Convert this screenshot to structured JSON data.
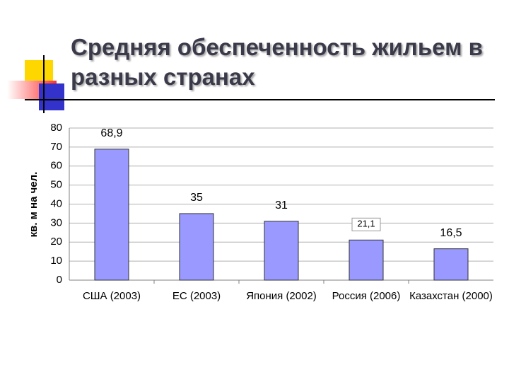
{
  "chart_data": {
    "type": "bar",
    "title": "Средняя обеспеченность жильем в разных странах",
    "y_label": "кв. м на чел.",
    "categories": [
      "США (2003)",
      "ЕС (2003)",
      "Япония (2002)",
      "Россия (2006)",
      "Казахстан (2000)"
    ],
    "values": [
      68.9,
      35,
      31,
      21.1,
      16.5
    ],
    "value_labels": [
      "68,9",
      "35",
      "31",
      "21,1",
      "16,5"
    ],
    "color": "#9999ff",
    "ylim": [
      0,
      80
    ],
    "yticks": [
      0,
      10,
      20,
      30,
      40,
      50,
      60,
      70,
      80
    ],
    "grid": true
  }
}
